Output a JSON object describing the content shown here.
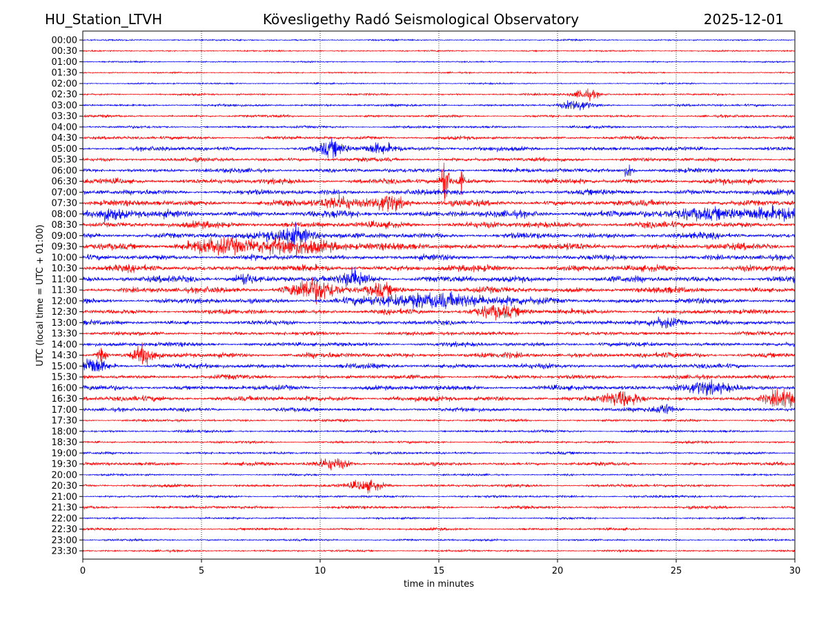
{
  "header": {
    "station": "HU_Station_LTVH",
    "title": "Kövesligethy Radó Seismological Observatory",
    "date": "2025-12-01"
  },
  "chart_data": {
    "type": "line",
    "subtype": "helicorder",
    "title": "Kövesligethy Radó Seismological Observatory",
    "xlabel": "time in minutes",
    "ylabel": "UTC (local time = UTC + 01:00)",
    "xlim": [
      0,
      30
    ],
    "xticks": [
      "0",
      "5",
      "10",
      "15",
      "20",
      "25",
      "30"
    ],
    "xtick_values": [
      0,
      5,
      10,
      15,
      20,
      25,
      30
    ],
    "grid": "vertical dotted",
    "colors": [
      "#0000ff",
      "#ff0000"
    ],
    "rows": [
      "00:00",
      "00:30",
      "01:00",
      "01:30",
      "02:00",
      "02:30",
      "03:00",
      "03:30",
      "04:00",
      "04:30",
      "05:00",
      "05:30",
      "06:00",
      "06:30",
      "07:00",
      "07:30",
      "08:00",
      "08:30",
      "09:00",
      "09:30",
      "10:00",
      "10:30",
      "11:00",
      "11:30",
      "12:00",
      "12:30",
      "13:00",
      "13:30",
      "14:00",
      "14:30",
      "15:00",
      "15:30",
      "16:00",
      "16:30",
      "17:00",
      "17:30",
      "18:00",
      "18:30",
      "19:00",
      "19:30",
      "20:00",
      "20:30",
      "21:00",
      "21:30",
      "22:00",
      "22:30",
      "23:00",
      "23:30"
    ],
    "noise_levels": [
      0.3,
      0.3,
      0.3,
      0.3,
      0.3,
      0.4,
      0.5,
      0.5,
      0.5,
      0.7,
      0.9,
      0.8,
      0.9,
      1.1,
      1.1,
      1.2,
      1.4,
      1.3,
      1.2,
      1.3,
      1.1,
      1.3,
      1.3,
      1.2,
      1.1,
      1.0,
      0.9,
      0.8,
      0.9,
      1.1,
      1.0,
      0.9,
      1.0,
      1.1,
      0.8,
      0.5,
      0.5,
      0.5,
      0.5,
      0.7,
      0.4,
      0.6,
      0.5,
      0.6,
      0.4,
      0.5,
      0.4,
      0.4
    ],
    "events": [
      {
        "row": 13,
        "minute": 15.25,
        "duration": 0.25,
        "amp": 9
      },
      {
        "row": 13,
        "minute": 15.95,
        "duration": 0.15,
        "amp": 4
      },
      {
        "row": 5,
        "minute": 21.2,
        "duration": 0.8,
        "amp": 2
      },
      {
        "row": 6,
        "minute": 20.8,
        "duration": 0.8,
        "amp": 2
      },
      {
        "row": 10,
        "minute": 10.5,
        "duration": 0.8,
        "amp": 2.5
      },
      {
        "row": 10,
        "minute": 12.5,
        "duration": 1.0,
        "amp": 2
      },
      {
        "row": 12,
        "minute": 23.0,
        "duration": 0.3,
        "amp": 2.5
      },
      {
        "row": 15,
        "minute": 10.8,
        "duration": 1.0,
        "amp": 2.5
      },
      {
        "row": 15,
        "minute": 12.8,
        "duration": 1.0,
        "amp": 3
      },
      {
        "row": 16,
        "minute": 1.1,
        "duration": 1.0,
        "amp": 2.5
      },
      {
        "row": 16,
        "minute": 27.8,
        "duration": 4.0,
        "amp": 2
      },
      {
        "row": 18,
        "minute": 8.8,
        "duration": 1.2,
        "amp": 4
      },
      {
        "row": 19,
        "minute": 9.0,
        "duration": 3.0,
        "amp": 2.5
      },
      {
        "row": 19,
        "minute": 5.5,
        "duration": 2.0,
        "amp": 2
      },
      {
        "row": 22,
        "minute": 11.5,
        "duration": 0.8,
        "amp": 3
      },
      {
        "row": 22,
        "minute": 6.8,
        "duration": 0.6,
        "amp": 2
      },
      {
        "row": 23,
        "minute": 9.7,
        "duration": 1.4,
        "amp": 4
      },
      {
        "row": 23,
        "minute": 12.5,
        "duration": 0.8,
        "amp": 2
      },
      {
        "row": 24,
        "minute": 15.0,
        "duration": 4.0,
        "amp": 2.5
      },
      {
        "row": 25,
        "minute": 17.5,
        "duration": 1.5,
        "amp": 2.2
      },
      {
        "row": 26,
        "minute": 24.5,
        "duration": 1.0,
        "amp": 2.2
      },
      {
        "row": 29,
        "minute": 2.6,
        "duration": 0.6,
        "amp": 3.5
      },
      {
        "row": 29,
        "minute": 0.8,
        "duration": 0.3,
        "amp": 2.5
      },
      {
        "row": 30,
        "minute": 0.4,
        "duration": 0.8,
        "amp": 3
      },
      {
        "row": 32,
        "minute": 26.0,
        "duration": 1.5,
        "amp": 2.2
      },
      {
        "row": 33,
        "minute": 22.8,
        "duration": 1.0,
        "amp": 2.5
      },
      {
        "row": 33,
        "minute": 29.5,
        "duration": 0.8,
        "amp": 3
      },
      {
        "row": 34,
        "minute": 24.5,
        "duration": 0.6,
        "amp": 2
      },
      {
        "row": 39,
        "minute": 10.5,
        "duration": 1.0,
        "amp": 2
      },
      {
        "row": 41,
        "minute": 12.0,
        "duration": 1.0,
        "amp": 2
      }
    ]
  }
}
